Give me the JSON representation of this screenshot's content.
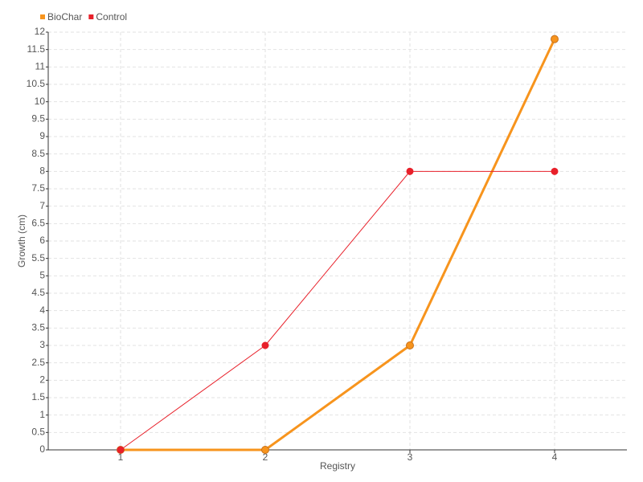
{
  "chart_data": {
    "type": "line",
    "x_label": "Registry",
    "y_label": "Growth (cm)",
    "categories": [
      "1",
      "2",
      "3",
      "4"
    ],
    "series": [
      {
        "name": "BioChar",
        "color": "#f7941d",
        "values": [
          0,
          0,
          3,
          11.8
        ]
      },
      {
        "name": "Control",
        "color": "#e8202a",
        "values": [
          0,
          3,
          8,
          8
        ]
      }
    ],
    "ylim": [
      0,
      12
    ],
    "yticks": [
      0,
      0.5,
      1,
      1.5,
      2,
      2.5,
      3,
      3.5,
      4,
      4.5,
      5,
      5.5,
      6,
      6.5,
      7,
      7.5,
      8,
      8.5,
      9,
      9.5,
      10,
      10.5,
      11,
      11.5,
      12
    ],
    "grid": true,
    "legend": "top-left"
  }
}
